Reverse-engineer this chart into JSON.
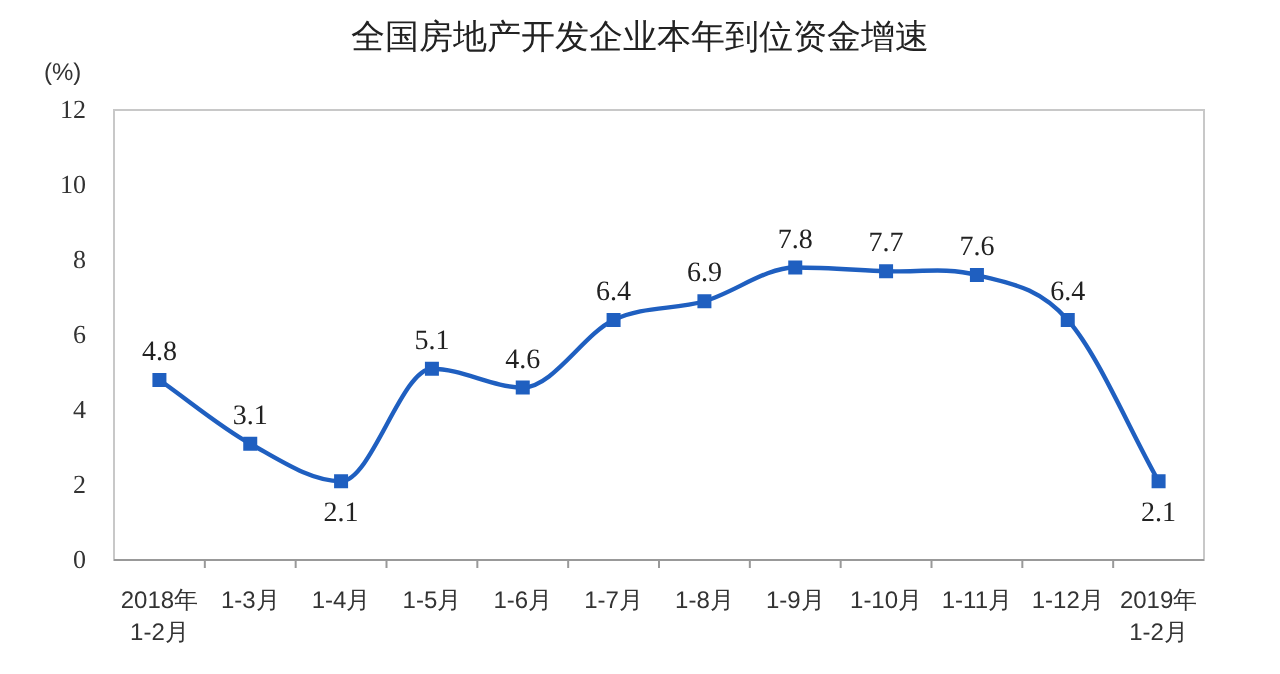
{
  "chart_data": {
    "type": "line",
    "title": "全国房地产开发企业本年到位资金增速",
    "ylabel": "(%)",
    "categories": [
      "2018年\n1-2月",
      "1-3月",
      "1-4月",
      "1-5月",
      "1-6月",
      "1-7月",
      "1-8月",
      "1-9月",
      "1-10月",
      "1-11月",
      "1-12月",
      "2019年\n1-2月"
    ],
    "series": [
      {
        "color": "#1f5fc0",
        "values": [
          4.8,
          3.1,
          2.1,
          5.1,
          4.6,
          6.4,
          6.9,
          7.8,
          7.7,
          7.6,
          6.4,
          2.1
        ]
      }
    ],
    "ylim": [
      0,
      12
    ],
    "yticks": [
      0,
      2,
      4,
      6,
      8,
      10,
      12
    ],
    "grid": false,
    "marker": "square",
    "line_style": "solid",
    "data_labels": true
  }
}
